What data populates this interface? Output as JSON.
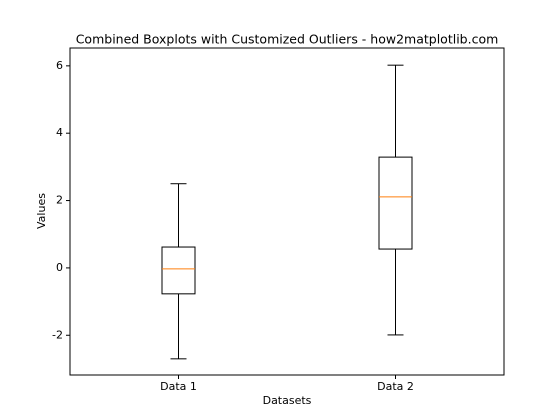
{
  "chart_data": {
    "type": "boxplot",
    "title": "Combined Boxplots with Customized Outliers - how2matplotlib.com",
    "x_label": "Datasets",
    "y_label": "Values",
    "categories": [
      "Data 1",
      "Data 2"
    ],
    "boxes": [
      {
        "whislo": -2.7,
        "q1": -0.77,
        "med": -0.03,
        "q3": 0.62,
        "whishi": 2.5
      },
      {
        "whislo": -1.99,
        "q1": 0.56,
        "med": 2.11,
        "q3": 3.29,
        "whishi": 6.02
      }
    ],
    "box_color": "#000000",
    "median_color": "#ff7f0e",
    "ylim": [
      -3.18,
      6.53
    ],
    "yticks": [
      -2,
      0,
      2,
      4,
      6
    ]
  }
}
